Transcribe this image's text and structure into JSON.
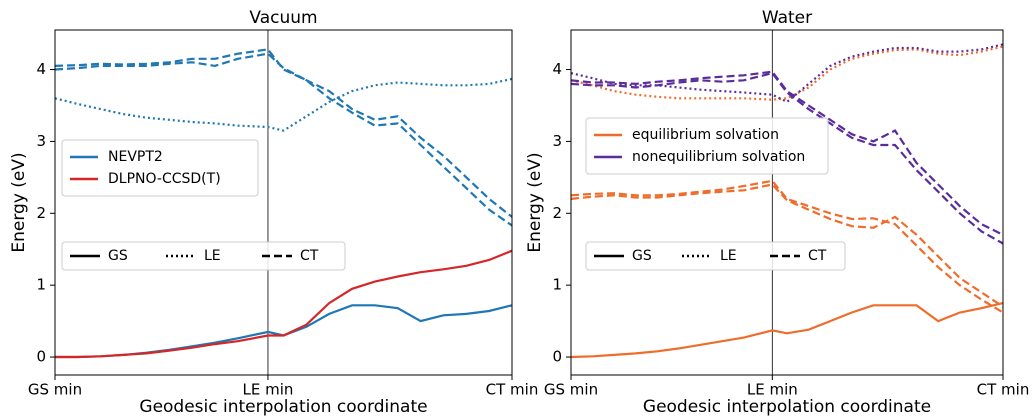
{
  "chart_data": [
    {
      "type": "line",
      "title": "Vacuum",
      "x_label": "Geodesic interpolation coordinate",
      "y_label": "Energy (eV)",
      "x": [
        0,
        0.05,
        0.1,
        0.15,
        0.2,
        0.25,
        0.3,
        0.35,
        0.4,
        0.466,
        0.5,
        0.55,
        0.6,
        0.65,
        0.7,
        0.75,
        0.8,
        0.85,
        0.9,
        0.95,
        1
      ],
      "xlim": [
        0,
        1
      ],
      "xticks": [
        {
          "value": 0,
          "label": "GS min"
        },
        {
          "value": 0.466,
          "label": "LE min"
        },
        {
          "value": 1,
          "label": "CT min"
        }
      ],
      "ylim": [
        -0.25,
        4.55
      ],
      "yticks": [
        0,
        1,
        2,
        3,
        4
      ],
      "legend": [
        {
          "name": "NEVPT2",
          "color": "#1f77b4"
        },
        {
          "name": "DLPNO-CCSD(T)",
          "color": "#d62728"
        }
      ],
      "line_styles": [
        {
          "label": "GS",
          "dash": "solid"
        },
        {
          "label": "LE",
          "dash": "dotted"
        },
        {
          "label": "CT",
          "dash": "dashed"
        }
      ],
      "series": [
        {
          "color": "#1f77b4",
          "dash": "solid",
          "values": [
            0,
            0,
            0.01,
            0.03,
            0.06,
            0.1,
            0.15,
            0.2,
            0.26,
            0.35,
            0.3,
            0.42,
            0.6,
            0.72,
            0.72,
            0.68,
            0.5,
            0.58,
            0.6,
            0.64,
            0.72
          ]
        },
        {
          "color": "#d62728",
          "dash": "solid",
          "values": [
            0,
            0,
            0.01,
            0.03,
            0.05,
            0.09,
            0.13,
            0.18,
            0.22,
            0.3,
            0.3,
            0.45,
            0.75,
            0.95,
            1.05,
            1.12,
            1.18,
            1.22,
            1.27,
            1.35,
            1.48
          ]
        },
        {
          "color": "#1f77b4",
          "dash": "dotted",
          "values": [
            3.6,
            3.52,
            3.45,
            3.38,
            3.33,
            3.3,
            3.27,
            3.25,
            3.22,
            3.2,
            3.15,
            3.35,
            3.55,
            3.7,
            3.78,
            3.82,
            3.8,
            3.78,
            3.78,
            3.8,
            3.87
          ]
        },
        {
          "color": "#1f77b4",
          "dash": "dashed",
          "values": [
            4.05,
            4.06,
            4.08,
            4.07,
            4.08,
            4.1,
            4.15,
            4.15,
            4.22,
            4.28,
            4.0,
            3.85,
            3.7,
            3.45,
            3.3,
            3.35,
            3.05,
            2.8,
            2.5,
            2.2,
            1.95
          ]
        },
        {
          "color": "#1f77b4",
          "dash": "dashed",
          "values": [
            4.0,
            4.02,
            4.05,
            4.05,
            4.05,
            4.08,
            4.1,
            4.05,
            4.15,
            4.22,
            4.02,
            3.85,
            3.6,
            3.4,
            3.22,
            3.25,
            2.95,
            2.65,
            2.35,
            2.05,
            1.83
          ]
        }
      ]
    },
    {
      "type": "line",
      "title": "Water",
      "x_label": "Geodesic interpolation coordinate",
      "y_label": "Energy (eV)",
      "x": [
        0,
        0.05,
        0.1,
        0.15,
        0.2,
        0.25,
        0.3,
        0.35,
        0.4,
        0.466,
        0.5,
        0.55,
        0.6,
        0.65,
        0.7,
        0.75,
        0.8,
        0.85,
        0.9,
        0.95,
        1
      ],
      "xlim": [
        0,
        1
      ],
      "xticks": [
        {
          "value": 0,
          "label": "GS min"
        },
        {
          "value": 0.466,
          "label": "LE min"
        },
        {
          "value": 1,
          "label": "CT min"
        }
      ],
      "ylim": [
        -0.25,
        4.55
      ],
      "yticks": [
        0,
        1,
        2,
        3,
        4
      ],
      "legend": [
        {
          "name": "equilibrium solvation",
          "color": "#f06c2b"
        },
        {
          "name": "nonequilibrium solvation",
          "color": "#5b2c9c"
        }
      ],
      "line_styles": [
        {
          "label": "GS",
          "dash": "solid"
        },
        {
          "label": "LE",
          "dash": "dotted"
        },
        {
          "label": "CT",
          "dash": "dashed"
        }
      ],
      "series": [
        {
          "color": "#f06c2b",
          "dash": "solid",
          "values": [
            0,
            0.01,
            0.03,
            0.05,
            0.08,
            0.12,
            0.17,
            0.22,
            0.27,
            0.37,
            0.33,
            0.38,
            0.5,
            0.62,
            0.72,
            0.72,
            0.72,
            0.5,
            0.62,
            0.68,
            0.75
          ]
        },
        {
          "color": "#f06c2b",
          "dash": "dotted",
          "values": [
            3.85,
            3.78,
            3.7,
            3.65,
            3.62,
            3.6,
            3.6,
            3.6,
            3.6,
            3.58,
            3.6,
            3.75,
            4.0,
            4.15,
            4.22,
            4.27,
            4.28,
            4.22,
            4.2,
            4.25,
            4.32
          ]
        },
        {
          "color": "#5b2c9c",
          "dash": "dotted",
          "values": [
            3.95,
            3.88,
            3.8,
            3.78,
            3.78,
            3.75,
            3.72,
            3.7,
            3.68,
            3.65,
            3.55,
            3.8,
            4.05,
            4.18,
            4.25,
            4.3,
            4.3,
            4.25,
            4.25,
            4.28,
            4.35
          ]
        },
        {
          "color": "#f06c2b",
          "dash": "dashed",
          "values": [
            2.25,
            2.27,
            2.28,
            2.25,
            2.25,
            2.27,
            2.3,
            2.33,
            2.38,
            2.45,
            2.2,
            2.1,
            2.0,
            1.92,
            1.93,
            1.85,
            1.55,
            1.25,
            1.0,
            0.8,
            0.62
          ]
        },
        {
          "color": "#f06c2b",
          "dash": "dashed",
          "values": [
            2.2,
            2.23,
            2.25,
            2.22,
            2.22,
            2.25,
            2.28,
            2.3,
            2.32,
            2.4,
            2.18,
            2.05,
            1.92,
            1.82,
            1.8,
            1.95,
            1.7,
            1.4,
            1.1,
            0.9,
            0.7
          ]
        },
        {
          "color": "#5b2c9c",
          "dash": "dashed",
          "values": [
            3.85,
            3.82,
            3.82,
            3.8,
            3.83,
            3.85,
            3.88,
            3.9,
            3.92,
            3.97,
            3.7,
            3.5,
            3.3,
            3.1,
            3.0,
            3.15,
            2.7,
            2.4,
            2.1,
            1.85,
            1.7
          ]
        },
        {
          "color": "#5b2c9c",
          "dash": "dashed",
          "values": [
            3.8,
            3.78,
            3.78,
            3.75,
            3.78,
            3.82,
            3.85,
            3.83,
            3.85,
            3.95,
            3.68,
            3.45,
            3.25,
            3.05,
            2.95,
            2.95,
            2.6,
            2.3,
            2.0,
            1.75,
            1.58
          ]
        }
      ]
    }
  ]
}
